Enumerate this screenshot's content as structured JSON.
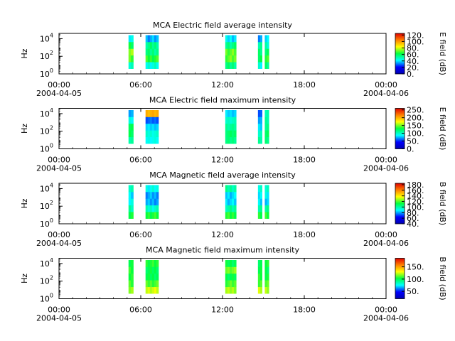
{
  "chart_data": [
    {
      "type": "heatmap",
      "title": "MCA  Electric field average intensity",
      "ylabel": "Hz",
      "colorbar_label": "E field (dB)",
      "colorbar_ticks": [
        "0.",
        "20.",
        "40.",
        "60.",
        "80.",
        "100.",
        "120."
      ],
      "colorbar_range": [
        0,
        125
      ],
      "y_ticks": [
        {
          "base": "10",
          "exp": "0"
        },
        {
          "base": "10",
          "exp": "2"
        },
        {
          "base": "10",
          "exp": "4"
        }
      ],
      "x_ticks": [
        {
          "time": "00:00",
          "date": "2004-04-05"
        },
        {
          "time": "06:00",
          "date": ""
        },
        {
          "time": "12:00",
          "date": ""
        },
        {
          "time": "18:00",
          "date": ""
        },
        {
          "time": "00:00",
          "date": "2004-04-06"
        }
      ],
      "xlim_hours": [
        0,
        24
      ],
      "ylim_log10_hz": [
        0,
        4.6
      ],
      "segments": [
        {
          "start_hour": 5.1,
          "end_hour": 5.45,
          "freq_range_log10": [
            0.6,
            4.4
          ],
          "levels": [
            50,
            70,
            75,
            60,
            40
          ]
        },
        {
          "start_hour": 6.35,
          "end_hour": 7.3,
          "freq_range_log10": [
            0.6,
            4.4
          ],
          "levels": [
            45,
            65,
            55,
            55,
            35
          ]
        },
        {
          "start_hour": 12.2,
          "end_hour": 13.0,
          "freq_range_log10": [
            0.6,
            4.4
          ],
          "levels": [
            55,
            70,
            70,
            55,
            40
          ]
        },
        {
          "start_hour": 14.6,
          "end_hour": 14.9,
          "freq_range_log10": [
            0.6,
            4.4
          ],
          "levels": [
            45,
            60,
            55,
            50,
            35
          ]
        },
        {
          "start_hour": 15.1,
          "end_hour": 15.4,
          "freq_range_log10": [
            0.6,
            4.4
          ],
          "levels": [
            55,
            65,
            60,
            50,
            40
          ]
        }
      ]
    },
    {
      "type": "heatmap",
      "title": "MCA  Electric field maximum intensity",
      "ylabel": "Hz",
      "colorbar_label": "E field (dB)",
      "colorbar_ticks": [
        "0.",
        "50.",
        "100.",
        "150.",
        "200.",
        "250."
      ],
      "colorbar_range": [
        0,
        260
      ],
      "y_ticks": [
        {
          "base": "10",
          "exp": "0"
        },
        {
          "base": "10",
          "exp": "2"
        },
        {
          "base": "10",
          "exp": "4"
        }
      ],
      "x_ticks": [
        {
          "time": "00:00",
          "date": "2004-04-05"
        },
        {
          "time": "06:00",
          "date": ""
        },
        {
          "time": "12:00",
          "date": ""
        },
        {
          "time": "18:00",
          "date": ""
        },
        {
          "time": "00:00",
          "date": "2004-04-06"
        }
      ],
      "xlim_hours": [
        0,
        24
      ],
      "ylim_log10_hz": [
        0,
        4.6
      ],
      "segments": [
        {
          "start_hour": 5.1,
          "end_hour": 5.45,
          "freq_range_log10": [
            0.6,
            4.4
          ],
          "levels": [
            110,
            125,
            125,
            90,
            70
          ]
        },
        {
          "start_hour": 6.35,
          "end_hour": 7.3,
          "freq_range_log10": [
            0.6,
            4.4
          ],
          "levels": [
            90,
            95,
            80,
            60,
            200
          ]
        },
        {
          "start_hour": 12.2,
          "end_hour": 13.0,
          "freq_range_log10": [
            0.6,
            4.4
          ],
          "levels": [
            115,
            120,
            110,
            100,
            80
          ]
        },
        {
          "start_hour": 14.6,
          "end_hour": 14.9,
          "freq_range_log10": [
            0.6,
            4.4
          ],
          "levels": [
            110,
            100,
            80,
            70,
            60
          ]
        },
        {
          "start_hour": 15.1,
          "end_hour": 15.4,
          "freq_range_log10": [
            0.6,
            4.4
          ],
          "levels": [
            115,
            120,
            115,
            110,
            105
          ]
        }
      ]
    },
    {
      "type": "heatmap",
      "title": "MCA  Magnetic field average intensity",
      "ylabel": "Hz",
      "colorbar_label": "B field (dB)",
      "colorbar_ticks": [
        "40.",
        "60.",
        "80.",
        "100.",
        "120.",
        "140.",
        "160.",
        "180."
      ],
      "colorbar_range": [
        40,
        185
      ],
      "y_ticks": [
        {
          "base": "10",
          "exp": "0"
        },
        {
          "base": "10",
          "exp": "2"
        },
        {
          "base": "10",
          "exp": "4"
        }
      ],
      "x_ticks": [
        {
          "time": "00:00",
          "date": "2004-04-05"
        },
        {
          "time": "06:00",
          "date": ""
        },
        {
          "time": "12:00",
          "date": ""
        },
        {
          "time": "18:00",
          "date": ""
        },
        {
          "time": "00:00",
          "date": "2004-04-06"
        }
      ],
      "xlim_hours": [
        0,
        24
      ],
      "ylim_log10_hz": [
        0,
        4.6
      ],
      "segments": [
        {
          "start_hour": 5.1,
          "end_hour": 5.45,
          "freq_range_log10": [
            0.6,
            4.4
          ],
          "levels": [
            115,
            100,
            90,
            85,
            95
          ]
        },
        {
          "start_hour": 6.35,
          "end_hour": 7.3,
          "freq_range_log10": [
            0.6,
            4.4
          ],
          "levels": [
            115,
            95,
            80,
            80,
            90
          ]
        },
        {
          "start_hour": 12.2,
          "end_hour": 13.0,
          "freq_range_log10": [
            0.6,
            4.4
          ],
          "levels": [
            115,
            100,
            85,
            85,
            100
          ]
        },
        {
          "start_hour": 14.6,
          "end_hour": 14.9,
          "freq_range_log10": [
            0.6,
            4.4
          ],
          "levels": [
            115,
            100,
            85,
            85,
            95
          ]
        },
        {
          "start_hour": 15.1,
          "end_hour": 15.4,
          "freq_range_log10": [
            0.6,
            4.4
          ],
          "levels": [
            115,
            100,
            85,
            90,
            95
          ]
        }
      ]
    },
    {
      "type": "heatmap",
      "title": "MCA  Magnetic field maximum intensity",
      "ylabel": "Hz",
      "colorbar_label": "B field (dB)",
      "colorbar_ticks": [
        "50.",
        "100.",
        "150."
      ],
      "colorbar_range": [
        20,
        185
      ],
      "y_ticks": [
        {
          "base": "10",
          "exp": "0"
        },
        {
          "base": "10",
          "exp": "2"
        },
        {
          "base": "10",
          "exp": "4"
        }
      ],
      "x_ticks": [
        {
          "time": "00:00",
          "date": "2004-04-05"
        },
        {
          "time": "06:00",
          "date": ""
        },
        {
          "time": "12:00",
          "date": ""
        },
        {
          "time": "18:00",
          "date": ""
        },
        {
          "time": "00:00",
          "date": "2004-04-06"
        }
      ],
      "xlim_hours": [
        0,
        24
      ],
      "ylim_log10_hz": [
        0,
        4.6
      ],
      "segments": [
        {
          "start_hour": 5.1,
          "end_hour": 5.45,
          "freq_range_log10": [
            0.6,
            4.4
          ],
          "levels": [
            120,
            110,
            105,
            105,
            100
          ]
        },
        {
          "start_hour": 6.35,
          "end_hour": 7.3,
          "freq_range_log10": [
            0.6,
            4.4
          ],
          "levels": [
            125,
            110,
            100,
            100,
            105
          ]
        },
        {
          "start_hour": 12.2,
          "end_hour": 13.0,
          "freq_range_log10": [
            0.6,
            4.4
          ],
          "levels": [
            120,
            110,
            100,
            115,
            100
          ]
        },
        {
          "start_hour": 14.6,
          "end_hour": 14.9,
          "freq_range_log10": [
            0.6,
            4.4
          ],
          "levels": [
            125,
            110,
            105,
            100,
            100
          ]
        },
        {
          "start_hour": 15.1,
          "end_hour": 15.4,
          "freq_range_log10": [
            0.6,
            4.4
          ],
          "levels": [
            120,
            110,
            105,
            100,
            105
          ]
        }
      ]
    }
  ],
  "colormap_stops": [
    "#0000b0",
    "#0000ff",
    "#00ffff",
    "#00ff40",
    "#ffff00",
    "#ff8000",
    "#e00000"
  ]
}
